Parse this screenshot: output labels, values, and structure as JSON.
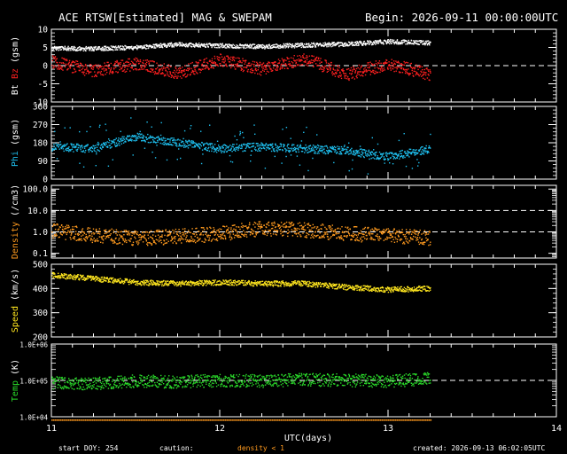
{
  "header": {
    "title": "ACE RTSW[Estimated] MAG & SWEPAM",
    "begin": "Begin: 2026-09-11 00:00:00UTC"
  },
  "footer": {
    "start_doy": "start DOY: 254",
    "caution": "caution:",
    "density_note": "density < 1",
    "created": "created: 2026-09-13 06:02:05UTC"
  },
  "colors": {
    "background": "#000000",
    "axes": "#ffffff",
    "bt": "#ffffff",
    "bz": "#ff2020",
    "phi": "#1ec0f0",
    "density": "#ff9a1e",
    "speed": "#ffe61e",
    "temp": "#2adc2a",
    "caution": "#ff9a1e"
  },
  "chart_data": [
    {
      "type": "scatter",
      "panel": "magnetic field",
      "ylabel_parts": [
        "Bt",
        "Bz",
        "(gsm)"
      ],
      "ylim": [
        -10,
        10
      ],
      "yticks": [
        -10,
        -5,
        0,
        5,
        10
      ],
      "ytick_labels": [
        "-10",
        "-5",
        "0",
        "5",
        "10"
      ],
      "reference_lines": [
        0
      ],
      "x": [
        11.0,
        11.25,
        11.5,
        11.75,
        12.0,
        12.25,
        12.5,
        12.75,
        13.0,
        13.25
      ],
      "series": [
        {
          "name": "Bt",
          "values": [
            4.8,
            4.6,
            5.0,
            5.8,
            5.5,
            5.2,
            5.6,
            5.9,
            6.6,
            6.2
          ]
        },
        {
          "name": "Bz",
          "values": [
            1.0,
            -1.5,
            0.5,
            -2.0,
            1.5,
            -1.0,
            2.0,
            -2.5,
            0.5,
            -2.5
          ]
        }
      ]
    },
    {
      "type": "scatter",
      "panel": "phi",
      "ylabel_parts": [
        "Phi",
        "(gsm)"
      ],
      "ylim": [
        0,
        360
      ],
      "yticks": [
        0,
        90,
        180,
        270,
        360
      ],
      "ytick_labels": [
        "0",
        "90",
        "180",
        "270",
        "360"
      ],
      "x": [
        11.0,
        11.25,
        11.5,
        11.75,
        12.0,
        12.25,
        12.5,
        12.75,
        13.0,
        13.25
      ],
      "series": [
        {
          "name": "Phi",
          "values": [
            160,
            150,
            210,
            180,
            150,
            160,
            150,
            140,
            110,
            150
          ]
        }
      ]
    },
    {
      "type": "scatter",
      "panel": "density",
      "ylabel_parts": [
        "Density",
        "(/cm3)"
      ],
      "yscale": "log",
      "ylim": [
        0.06,
        150
      ],
      "yticks": [
        0.1,
        1.0,
        10.0,
        100.0
      ],
      "ytick_labels": [
        "0.1",
        "1.0",
        "10.0",
        "100.0"
      ],
      "reference_lines": [
        1.0,
        10.0
      ],
      "x": [
        11.0,
        11.25,
        11.5,
        11.75,
        12.0,
        12.25,
        12.5,
        12.75,
        13.0,
        13.25
      ],
      "series": [
        {
          "name": "Density",
          "values": [
            1.1,
            0.7,
            0.5,
            0.6,
            0.8,
            1.4,
            1.2,
            0.8,
            0.7,
            0.5
          ]
        }
      ]
    },
    {
      "type": "scatter",
      "panel": "speed",
      "ylabel_parts": [
        "Speed",
        "(km/s)"
      ],
      "ylim": [
        200,
        500
      ],
      "yticks": [
        200,
        300,
        400,
        500
      ],
      "ytick_labels": [
        "200",
        "300",
        "400",
        "500"
      ],
      "x": [
        11.0,
        11.25,
        11.5,
        11.75,
        12.0,
        12.25,
        12.5,
        12.75,
        13.0,
        13.25
      ],
      "series": [
        {
          "name": "Speed",
          "values": [
            455,
            440,
            425,
            420,
            425,
            420,
            420,
            405,
            395,
            400
          ]
        }
      ]
    },
    {
      "type": "scatter",
      "panel": "temperature",
      "ylabel_parts": [
        "Temp",
        "(K)"
      ],
      "yscale": "log",
      "ylim": [
        10000,
        1000000
      ],
      "yticks": [
        10000,
        100000,
        1000000
      ],
      "ytick_labels": [
        "1.0E+04",
        "1.0E+05",
        "1.0E+06"
      ],
      "reference_lines": [
        100000
      ],
      "x": [
        11.0,
        11.25,
        11.5,
        11.75,
        12.0,
        12.25,
        12.5,
        12.75,
        13.0,
        13.25
      ],
      "series": [
        {
          "name": "Temp",
          "values": [
            85000,
            80000,
            95000,
            90000,
            100000,
            95000,
            105000,
            100000,
            95000,
            110000
          ]
        }
      ]
    }
  ],
  "x_axis": {
    "label": "UTC(days)",
    "xlim": [
      11,
      14
    ],
    "ticks": [
      11,
      12,
      13,
      14
    ],
    "tick_labels": [
      "11",
      "12",
      "13",
      "14"
    ],
    "data_end": 13.25
  }
}
